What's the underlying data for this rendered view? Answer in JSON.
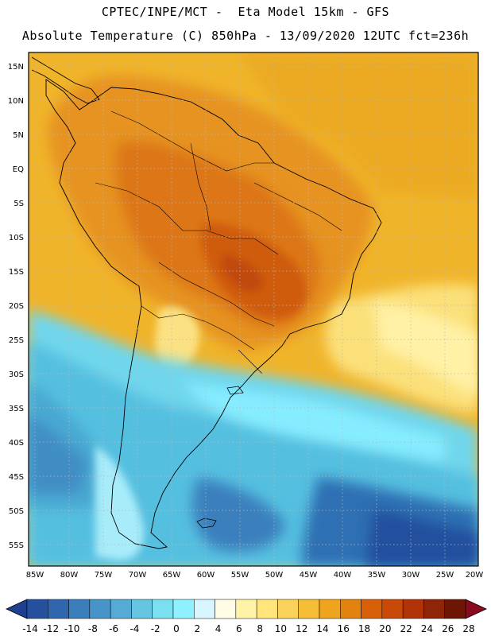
{
  "header": {
    "line1": "CPTEC/INPE/MCT -  Eta Model 15km - GFS",
    "line2": "Absolute Temperature (C) 850hPa - 13/09/2020 12UTC fct=236h"
  },
  "axes": {
    "lat_labels": [
      "15N",
      "10N",
      "5N",
      "EQ",
      "5S",
      "10S",
      "15S",
      "20S",
      "25S",
      "30S",
      "35S",
      "40S",
      "45S",
      "50S",
      "55S"
    ],
    "lon_labels": [
      "85W",
      "80W",
      "75W",
      "70W",
      "65W",
      "60W",
      "55W",
      "50W",
      "45W",
      "40W",
      "35W",
      "30W",
      "25W",
      "20W"
    ]
  },
  "colorbar": {
    "tick_labels": [
      "-14",
      "-12",
      "-10",
      "-8",
      "-6",
      "-4",
      "-2",
      "0",
      "2",
      "4",
      "6",
      "8",
      "10",
      "12",
      "14",
      "16",
      "18",
      "20",
      "22",
      "24",
      "26",
      "28"
    ],
    "colors": [
      "#1f3f8f",
      "#24509e",
      "#2f66ad",
      "#3a7fbc",
      "#4795c8",
      "#55abd4",
      "#66c6e2",
      "#7ae0f0",
      "#8ff0ff",
      "#d8f6ff",
      "#fffbe4",
      "#fff3a8",
      "#ffe57a",
      "#fcd35a",
      "#f6bd36",
      "#eea41c",
      "#e2820f",
      "#d8600a",
      "#c94a08",
      "#b03408",
      "#8e2408",
      "#6e1606",
      "#8a0a1e"
    ]
  }
}
